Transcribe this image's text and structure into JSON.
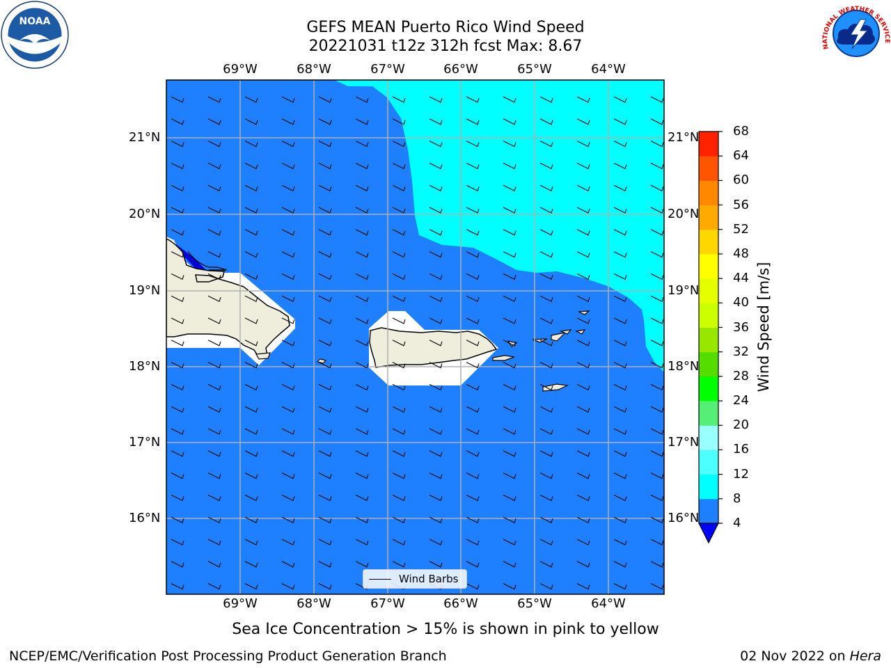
{
  "title": {
    "line1": "GEFS MEAN Puerto Rico Wind Speed",
    "line2": "20221031 t12z 312h fcst   Max: 8.67"
  },
  "logos": {
    "left": {
      "icon": "noaa-logo-icon",
      "text": "NOAA"
    },
    "right": {
      "icon": "national-weather-service-logo-icon",
      "text": "NATIONAL WEATHER SERVICE"
    }
  },
  "map": {
    "lon_labels": [
      "69°W",
      "68°W",
      "67°W",
      "66°W",
      "65°W",
      "64°W"
    ],
    "lat_labels": [
      "21°N",
      "20°N",
      "19°N",
      "18°N",
      "17°N",
      "16°N"
    ],
    "legend_label": "Wind Barbs",
    "colors": {
      "background_field": "#1e7fff",
      "high_field": "#00ffff",
      "low_field": "#0000d8",
      "land": "#efeedc",
      "mask": "#ffffff",
      "grid": "#b0b0b0"
    }
  },
  "colorbar": {
    "title": "Wind Speed [m/s]",
    "ticks": [
      "4",
      "8",
      "12",
      "16",
      "20",
      "24",
      "28",
      "32",
      "36",
      "40",
      "44",
      "48",
      "52",
      "56",
      "60",
      "64",
      "68"
    ],
    "colors": [
      "#1e7fff",
      "#00ffff",
      "#4dffff",
      "#99ffff",
      "#55ee77",
      "#00ff00",
      "#55dd00",
      "#99e600",
      "#ccff00",
      "#e6ff00",
      "#ffff00",
      "#ffd700",
      "#ffaa00",
      "#ff8800",
      "#ff5500",
      "#ff2200"
    ],
    "extend_color": "#0000ff"
  },
  "caption": "Sea Ice Concentration > 15% is shown in pink to yellow",
  "footer": {
    "left": "NCEP/EMC/Verification Post Processing Product Generation Branch",
    "right_date": "02 Nov 2022 on ",
    "right_host": "Hera"
  }
}
